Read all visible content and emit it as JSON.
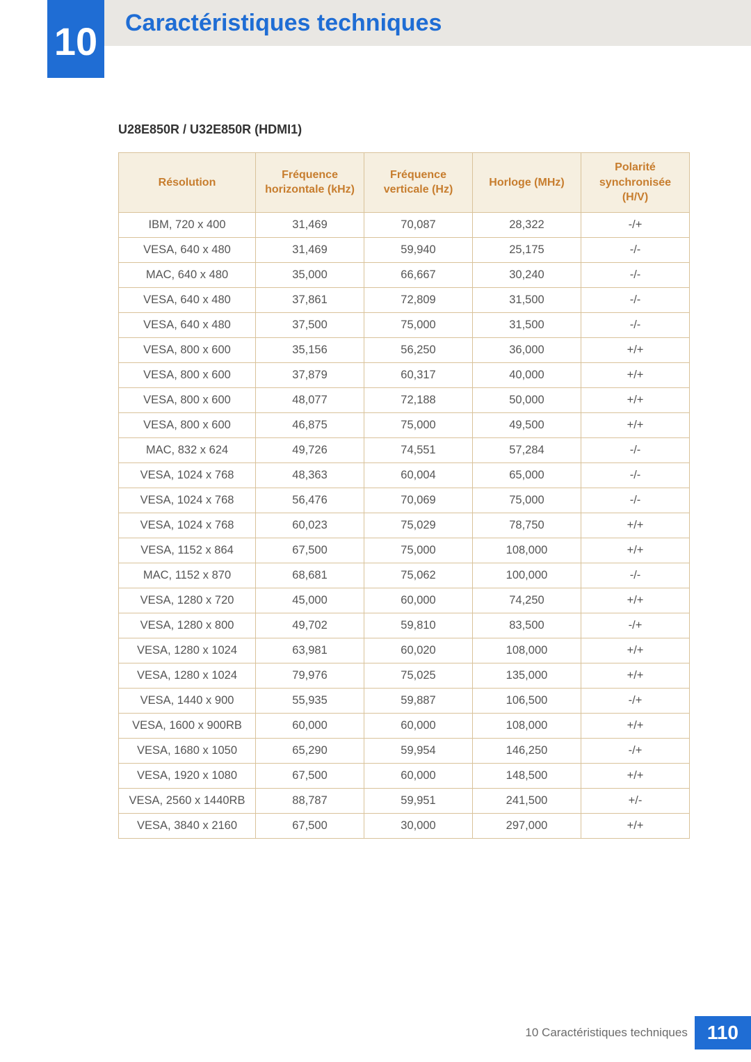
{
  "chapter": {
    "number": "10",
    "title": "Caractéristiques techniques"
  },
  "table": {
    "caption": "U28E850R / U32E850R (HDMI1)",
    "type": "table",
    "border_color": "#d9c29a",
    "header_bg": "#f6efe0",
    "header_color": "#c77d2e",
    "columns": [
      "Résolution",
      "Fréquence horizontale (kHz)",
      "Fréquence verticale (Hz)",
      "Horloge (MHz)",
      "Polarité synchronisée (H/V)"
    ],
    "rows": [
      [
        "IBM, 720 x 400",
        "31,469",
        "70,087",
        "28,322",
        "-/+"
      ],
      [
        "VESA, 640 x 480",
        "31,469",
        "59,940",
        "25,175",
        "-/-"
      ],
      [
        "MAC, 640 x 480",
        "35,000",
        "66,667",
        "30,240",
        "-/-"
      ],
      [
        "VESA, 640 x 480",
        "37,861",
        "72,809",
        "31,500",
        "-/-"
      ],
      [
        "VESA, 640 x 480",
        "37,500",
        "75,000",
        "31,500",
        "-/-"
      ],
      [
        "VESA, 800 x 600",
        "35,156",
        "56,250",
        "36,000",
        "+/+"
      ],
      [
        "VESA, 800 x 600",
        "37,879",
        "60,317",
        "40,000",
        "+/+"
      ],
      [
        "VESA, 800 x 600",
        "48,077",
        "72,188",
        "50,000",
        "+/+"
      ],
      [
        "VESA, 800 x 600",
        "46,875",
        "75,000",
        "49,500",
        "+/+"
      ],
      [
        "MAC, 832 x 624",
        "49,726",
        "74,551",
        "57,284",
        "-/-"
      ],
      [
        "VESA, 1024 x 768",
        "48,363",
        "60,004",
        "65,000",
        "-/-"
      ],
      [
        "VESA, 1024 x 768",
        "56,476",
        "70,069",
        "75,000",
        "-/-"
      ],
      [
        "VESA, 1024 x 768",
        "60,023",
        "75,029",
        "78,750",
        "+/+"
      ],
      [
        "VESA, 1152 x 864",
        "67,500",
        "75,000",
        "108,000",
        "+/+"
      ],
      [
        "MAC, 1152 x 870",
        "68,681",
        "75,062",
        "100,000",
        "-/-"
      ],
      [
        "VESA, 1280 x 720",
        "45,000",
        "60,000",
        "74,250",
        "+/+"
      ],
      [
        "VESA, 1280 x 800",
        "49,702",
        "59,810",
        "83,500",
        "-/+"
      ],
      [
        "VESA, 1280 x 1024",
        "63,981",
        "60,020",
        "108,000",
        "+/+"
      ],
      [
        "VESA, 1280 x 1024",
        "79,976",
        "75,025",
        "135,000",
        "+/+"
      ],
      [
        "VESA, 1440 x 900",
        "55,935",
        "59,887",
        "106,500",
        "-/+"
      ],
      [
        "VESA, 1600 x 900RB",
        "60,000",
        "60,000",
        "108,000",
        "+/+"
      ],
      [
        "VESA, 1680 x 1050",
        "65,290",
        "59,954",
        "146,250",
        "-/+"
      ],
      [
        "VESA, 1920 x 1080",
        "67,500",
        "60,000",
        "148,500",
        "+/+"
      ],
      [
        "VESA, 2560 x 1440RB",
        "88,787",
        "59,951",
        "241,500",
        "+/-"
      ],
      [
        "VESA, 3840 x 2160",
        "67,500",
        "30,000",
        "297,000",
        "+/+"
      ]
    ]
  },
  "footer": {
    "section_ref": "10 Caractéristiques techniques",
    "page_number": "110"
  },
  "colors": {
    "brand_blue": "#1f6dd4",
    "banner_bg": "#e9e7e3",
    "table_border": "#d9c29a",
    "table_header_bg": "#f6efe0",
    "table_header_text": "#c77d2e",
    "body_text": "#555555"
  }
}
